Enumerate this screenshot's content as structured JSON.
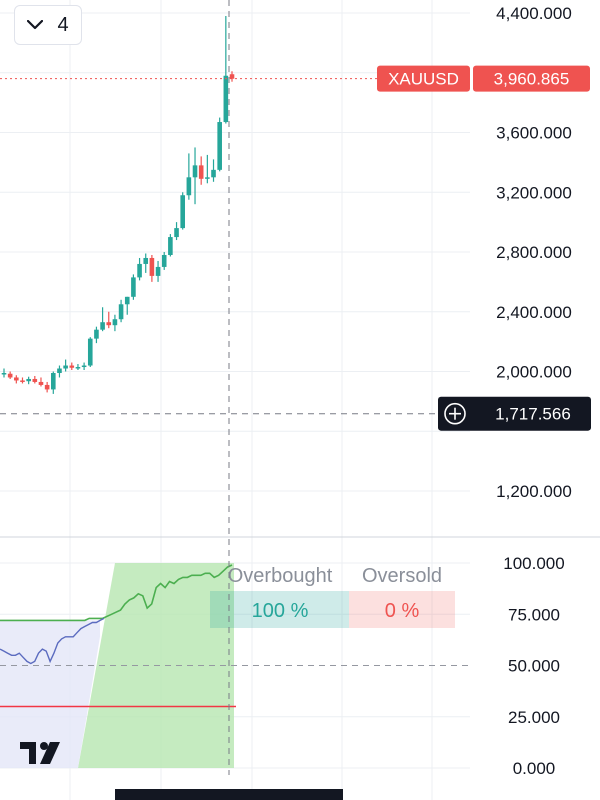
{
  "header": {
    "collapse_count": "4"
  },
  "symbol_label": "XAUUSD",
  "colors": {
    "up": "#26a69a",
    "down": "#ef5350",
    "grid": "#eceff3",
    "axis_text": "#131722",
    "crosshair_label_bg": "#131722",
    "green_line": "#4caf50",
    "blue_line": "#5b6bbf",
    "red_line": "#f23645",
    "gray_text": "#8a8f99"
  },
  "chart_data": [
    {
      "type": "candlestick",
      "symbol": "XAUUSD",
      "last_price": 3960.865,
      "last_price_label": "3,960.865",
      "crosshair_price": 1717.566,
      "crosshair_price_label": "1,717.566",
      "y_ticks": [
        {
          "value": 4400,
          "label": "4,400.000"
        },
        {
          "value": 3600,
          "label": "3,600.000"
        },
        {
          "value": 3200,
          "label": "3,200.000"
        },
        {
          "value": 2800,
          "label": "2,800.000"
        },
        {
          "value": 2400,
          "label": "2,400.000"
        },
        {
          "value": 2000,
          "label": "2,000.000"
        },
        {
          "value": 1200,
          "label": "1,200.000"
        }
      ],
      "candles": [
        {
          "o": 1980,
          "h": 2020,
          "l": 1960,
          "c": 1990
        },
        {
          "o": 1985,
          "h": 2000,
          "l": 1950,
          "c": 1960
        },
        {
          "o": 1960,
          "h": 1975,
          "l": 1920,
          "c": 1940
        },
        {
          "o": 1940,
          "h": 1960,
          "l": 1920,
          "c": 1935
        },
        {
          "o": 1935,
          "h": 1965,
          "l": 1915,
          "c": 1950
        },
        {
          "o": 1950,
          "h": 1970,
          "l": 1920,
          "c": 1930
        },
        {
          "o": 1930,
          "h": 1960,
          "l": 1900,
          "c": 1910
        },
        {
          "o": 1910,
          "h": 1930,
          "l": 1860,
          "c": 1880
        },
        {
          "o": 1880,
          "h": 2000,
          "l": 1850,
          "c": 1990
        },
        {
          "o": 1990,
          "h": 2040,
          "l": 1960,
          "c": 2020
        },
        {
          "o": 2020,
          "h": 2080,
          "l": 2000,
          "c": 2040
        },
        {
          "o": 2040,
          "h": 2060,
          "l": 2010,
          "c": 2025
        },
        {
          "o": 2025,
          "h": 2050,
          "l": 2010,
          "c": 2030
        },
        {
          "o": 2030,
          "h": 2060,
          "l": 2010,
          "c": 2040
        },
        {
          "o": 2040,
          "h": 2230,
          "l": 2030,
          "c": 2220
        },
        {
          "o": 2220,
          "h": 2300,
          "l": 2190,
          "c": 2280
        },
        {
          "o": 2280,
          "h": 2430,
          "l": 2270,
          "c": 2330
        },
        {
          "o": 2330,
          "h": 2400,
          "l": 2290,
          "c": 2310
        },
        {
          "o": 2310,
          "h": 2380,
          "l": 2270,
          "c": 2350
        },
        {
          "o": 2350,
          "h": 2480,
          "l": 2330,
          "c": 2450
        },
        {
          "o": 2450,
          "h": 2500,
          "l": 2380,
          "c": 2500
        },
        {
          "o": 2500,
          "h": 2650,
          "l": 2480,
          "c": 2630
        },
        {
          "o": 2630,
          "h": 2760,
          "l": 2610,
          "c": 2720
        },
        {
          "o": 2720,
          "h": 2790,
          "l": 2660,
          "c": 2760
        },
        {
          "o": 2760,
          "h": 2780,
          "l": 2600,
          "c": 2640
        },
        {
          "o": 2640,
          "h": 2740,
          "l": 2600,
          "c": 2700
        },
        {
          "o": 2700,
          "h": 2800,
          "l": 2680,
          "c": 2780
        },
        {
          "o": 2780,
          "h": 2920,
          "l": 2770,
          "c": 2900
        },
        {
          "o": 2900,
          "h": 3000,
          "l": 2880,
          "c": 2960
        },
        {
          "o": 2960,
          "h": 3200,
          "l": 2950,
          "c": 3180
        },
        {
          "o": 3180,
          "h": 3460,
          "l": 3150,
          "c": 3300
        },
        {
          "o": 3300,
          "h": 3500,
          "l": 3120,
          "c": 3380
        },
        {
          "o": 3380,
          "h": 3440,
          "l": 3250,
          "c": 3290
        },
        {
          "o": 3290,
          "h": 3450,
          "l": 3260,
          "c": 3300
        },
        {
          "o": 3300,
          "h": 3420,
          "l": 3270,
          "c": 3350
        },
        {
          "o": 3350,
          "h": 3700,
          "l": 3340,
          "c": 3670
        },
        {
          "o": 3670,
          "h": 4380,
          "l": 3660,
          "c": 3980
        },
        {
          "o": 3990,
          "h": 4010,
          "l": 3940,
          "c": 3960
        }
      ]
    },
    {
      "type": "line",
      "overbought_label": "Overbought",
      "oversold_label": "Oversold",
      "overbought_value": "100 %",
      "oversold_value": "0 %",
      "y_ticks": [
        {
          "value": 100,
          "label": "100.000"
        },
        {
          "value": 75,
          "label": "75.000"
        },
        {
          "value": 50,
          "label": "50.000"
        },
        {
          "value": 25,
          "label": "25.000"
        },
        {
          "value": 0,
          "label": "0.000"
        }
      ],
      "reference_line": 30,
      "series": [
        {
          "color": "green",
          "values": [
            72,
            72,
            72,
            72,
            72,
            72,
            72,
            72,
            72,
            72,
            72,
            72,
            72,
            72,
            72,
            72,
            72,
            72,
            72,
            72,
            73,
            73,
            73,
            73,
            74,
            75,
            76,
            77,
            80,
            82,
            83,
            85,
            84,
            78,
            80,
            88,
            90,
            88,
            91,
            90,
            92,
            93,
            93,
            94,
            94,
            94,
            95,
            95,
            93,
            94,
            96,
            98,
            99
          ]
        },
        {
          "color": "blue",
          "values": [
            58,
            57,
            56,
            55,
            55,
            56,
            54,
            52,
            51,
            52,
            56,
            58,
            57,
            52,
            56,
            61,
            63,
            64,
            64,
            64,
            66,
            68,
            69,
            70,
            71,
            71,
            72,
            73
          ]
        }
      ]
    }
  ]
}
